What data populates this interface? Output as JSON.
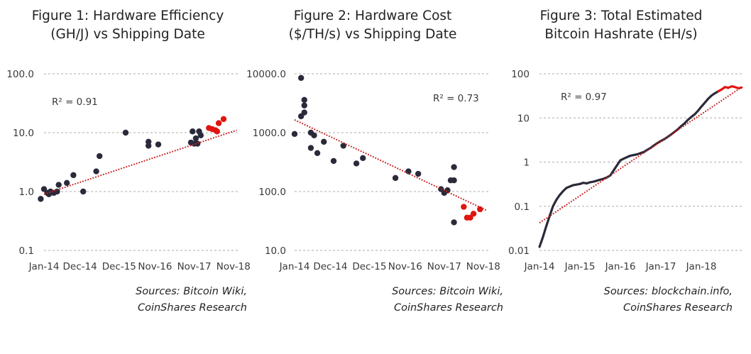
{
  "colors": {
    "dark": "#2b2a3a",
    "red": "#e0150f",
    "grid": "#bdbdbd",
    "trend": "#c81e1e"
  },
  "chart_data": [
    {
      "type": "scatter",
      "title_line1": "Figure 1: Hardware Efficiency",
      "title_line2": "(GH/J) vs Shipping Date",
      "yscale": "log",
      "ylim": [
        0.1,
        100
      ],
      "yticks": [
        "100.0",
        "10.0",
        "1.0",
        "0.1"
      ],
      "yticks_val": [
        100,
        10,
        1,
        0.1
      ],
      "xlim": [
        0,
        60
      ],
      "xticks": [
        "Jan-14",
        "Dec-14",
        "Dec-15",
        "Nov-16",
        "Nov-17",
        "Nov-18"
      ],
      "xticks_val": [
        0,
        11,
        23,
        34,
        46,
        58
      ],
      "r2": "R² = 0.91",
      "trend": [
        [
          0,
          0.9
        ],
        [
          59,
          11
        ]
      ],
      "series": [
        {
          "name": "historical",
          "color": "dark",
          "points": [
            [
              -1,
              0.75
            ],
            [
              0,
              1.1
            ],
            [
              1,
              0.95
            ],
            [
              1.5,
              0.9
            ],
            [
              2,
              1.0
            ],
            [
              3,
              0.95
            ],
            [
              4,
              1.0
            ],
            [
              4.5,
              1.3
            ],
            [
              7,
              1.4
            ],
            [
              9,
              1.9
            ],
            [
              12,
              1.0
            ],
            [
              16,
              2.2
            ],
            [
              17,
              4.0
            ],
            [
              25,
              10.0
            ],
            [
              32,
              7.0
            ],
            [
              32,
              6.0
            ],
            [
              35,
              6.3
            ],
            [
              45,
              6.8
            ],
            [
              45.5,
              10.5
            ],
            [
              46,
              6.5
            ],
            [
              46.5,
              8.0
            ],
            [
              47,
              6.5
            ],
            [
              47.5,
              10.5
            ],
            [
              48,
              9.0
            ]
          ]
        },
        {
          "name": "recent",
          "color": "red",
          "points": [
            [
              50.5,
              12.0
            ],
            [
              51.5,
              11.5
            ],
            [
              52.5,
              11.0
            ],
            [
              53,
              10.5
            ],
            [
              53.5,
              14.5
            ],
            [
              55,
              17.0
            ]
          ]
        }
      ],
      "source_line1": "Sources: Bitcoin Wiki,",
      "source_line2": "CoinShares Research"
    },
    {
      "type": "scatter",
      "title_line1": "Figure 2: Hardware Cost",
      "title_line2": "($/TH/s) vs Shipping Date",
      "yscale": "log",
      "ylim": [
        10,
        10000
      ],
      "yticks": [
        "10000.0",
        "1000.0",
        "100.0",
        "10.0"
      ],
      "yticks_val": [
        10000,
        1000,
        100,
        10
      ],
      "xlim": [
        0,
        60
      ],
      "xticks": [
        "Jan-14",
        "Dec-14",
        "Dec-15",
        "Nov-16",
        "Nov-17",
        "Nov-18"
      ],
      "xticks_val": [
        0,
        11,
        23,
        34,
        46,
        58
      ],
      "r2": "R² = 0.73",
      "trend": [
        [
          0,
          1650
        ],
        [
          59,
          48
        ]
      ],
      "series": [
        {
          "name": "historical",
          "color": "dark",
          "points": [
            [
              0,
              950
            ],
            [
              2,
              8500
            ],
            [
              2,
              1900
            ],
            [
              3,
              3600
            ],
            [
              3,
              2900
            ],
            [
              3,
              2200
            ],
            [
              5,
              1000
            ],
            [
              5,
              550
            ],
            [
              6,
              900
            ],
            [
              7,
              450
            ],
            [
              9,
              700
            ],
            [
              12,
              330
            ],
            [
              15,
              600
            ],
            [
              19,
              300
            ],
            [
              21,
              370
            ],
            [
              31,
              170
            ],
            [
              35,
              220
            ],
            [
              38,
              200
            ],
            [
              45,
              110
            ],
            [
              46,
              95
            ],
            [
              47,
              105
            ],
            [
              48,
              155
            ],
            [
              49,
              260
            ],
            [
              49,
              155
            ],
            [
              49,
              30
            ]
          ]
        },
        {
          "name": "recent",
          "color": "red",
          "points": [
            [
              52,
              55
            ],
            [
              53,
              36
            ],
            [
              54,
              36
            ],
            [
              55,
              42
            ],
            [
              57,
              50
            ]
          ]
        }
      ],
      "source_line1": "Sources: Bitcoin Wiki,",
      "source_line2": "CoinShares Research"
    },
    {
      "type": "line",
      "title_line1": "Figure 3: Total Estimated",
      "title_line2": "Bitcoin Hashrate (EH/s)",
      "yscale": "log",
      "ylim": [
        0.01,
        100
      ],
      "yticks": [
        "100",
        "10",
        "1",
        "0.1",
        "0.01"
      ],
      "yticks_val": [
        100,
        10,
        1,
        0.1,
        0.01
      ],
      "xlim": [
        0,
        60
      ],
      "xticks": [
        "Jan-14",
        "Jan-15",
        "Jan-16",
        "Jan-17",
        "Jan-18"
      ],
      "xticks_val": [
        0,
        12,
        24,
        36,
        48
      ],
      "r2": "R² = 0.97",
      "trend": [
        [
          0,
          0.042
        ],
        [
          60,
          50
        ]
      ],
      "series": [
        {
          "name": "hashrate",
          "color": "dark",
          "points": [
            [
              0,
              0.012
            ],
            [
              1,
              0.02
            ],
            [
              2,
              0.035
            ],
            [
              3,
              0.06
            ],
            [
              4,
              0.1
            ],
            [
              5,
              0.14
            ],
            [
              6,
              0.18
            ],
            [
              7,
              0.22
            ],
            [
              8,
              0.26
            ],
            [
              9,
              0.28
            ],
            [
              10,
              0.3
            ],
            [
              11,
              0.31
            ],
            [
              12,
              0.32
            ],
            [
              13,
              0.34
            ],
            [
              14,
              0.33
            ],
            [
              15,
              0.35
            ],
            [
              16,
              0.36
            ],
            [
              17,
              0.38
            ],
            [
              18,
              0.4
            ],
            [
              19,
              0.42
            ],
            [
              20,
              0.45
            ],
            [
              21,
              0.5
            ],
            [
              22,
              0.65
            ],
            [
              23,
              0.85
            ],
            [
              24,
              1.1
            ],
            [
              25,
              1.2
            ],
            [
              26,
              1.3
            ],
            [
              27,
              1.4
            ],
            [
              28,
              1.45
            ],
            [
              29,
              1.5
            ],
            [
              30,
              1.6
            ],
            [
              31,
              1.7
            ],
            [
              32,
              1.9
            ],
            [
              33,
              2.1
            ],
            [
              34,
              2.4
            ],
            [
              35,
              2.7
            ],
            [
              36,
              3.0
            ],
            [
              37,
              3.3
            ],
            [
              38,
              3.7
            ],
            [
              39,
              4.2
            ],
            [
              40,
              4.8
            ],
            [
              41,
              5.5
            ],
            [
              42,
              6.5
            ],
            [
              43,
              7.5
            ],
            [
              44,
              9.0
            ],
            [
              45,
              10.5
            ],
            [
              46,
              12.0
            ],
            [
              47,
              14.5
            ],
            [
              48,
              18.0
            ],
            [
              49,
              22.0
            ],
            [
              50,
              27.0
            ],
            [
              51,
              32.0
            ],
            [
              52,
              36.0
            ],
            [
              53,
              40.0
            ]
          ]
        },
        {
          "name": "recent",
          "color": "red",
          "points": [
            [
              53,
              40.0
            ],
            [
              54,
              44.0
            ],
            [
              55,
              50.0
            ],
            [
              56,
              48.0
            ],
            [
              57,
              52.0
            ],
            [
              58,
              50.0
            ],
            [
              59,
              47.0
            ],
            [
              60,
              49.0
            ]
          ]
        }
      ],
      "source_line1": "Sources: blockchain.info,",
      "source_line2": "CoinShares Research"
    }
  ]
}
